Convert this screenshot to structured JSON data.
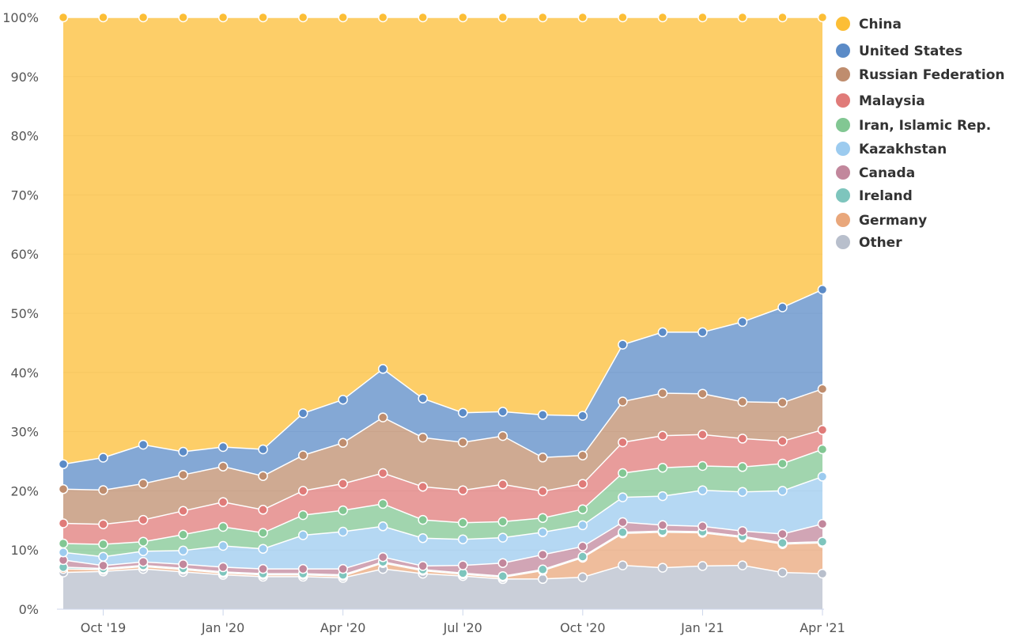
{
  "chart_data": {
    "type": "area",
    "stacking": "percent",
    "title": "",
    "xlabel": "",
    "ylabel": "",
    "ylim": [
      0,
      100
    ],
    "y_ticks": [
      "0%",
      "10%",
      "20%",
      "30%",
      "40%",
      "50%",
      "60%",
      "70%",
      "80%",
      "90%",
      "100%"
    ],
    "x_ticks": [
      {
        "index": 1,
        "label": "Oct '19"
      },
      {
        "index": 4,
        "label": "Jan '20"
      },
      {
        "index": 7,
        "label": "Apr '20"
      },
      {
        "index": 10,
        "label": "Jul '20"
      },
      {
        "index": 13,
        "label": "Oct '20"
      },
      {
        "index": 16,
        "label": "Jan '21"
      },
      {
        "index": 19,
        "label": "Apr '21"
      }
    ],
    "x": [
      "Sep 2019",
      "Oct 2019",
      "Nov 2019",
      "Dec 2019",
      "Jan 2020",
      "Feb 2020",
      "Mar 2020",
      "Apr 2020",
      "May 2020",
      "Jun 2020",
      "Jul 2020",
      "Aug 2020",
      "Sep 2020",
      "Oct 2020",
      "Nov 2020",
      "Dec 2020",
      "Jan 2021",
      "Feb 2021",
      "Mar 2021",
      "Apr 2021"
    ],
    "legend_position": "right",
    "grid": "horizontal",
    "series": [
      {
        "name": "Other",
        "color": "#b8bfcc",
        "values": [
          6.2,
          6.4,
          6.8,
          6.3,
          5.8,
          5.5,
          5.5,
          5.3,
          6.8,
          6.0,
          5.6,
          5.1,
          5.1,
          5.4,
          7.4,
          7.0,
          7.3,
          7.4,
          6.2,
          6.0
        ]
      },
      {
        "name": "Germany",
        "color": "#e9a77b",
        "values": [
          0.6,
          0.3,
          0.4,
          0.4,
          0.3,
          0.3,
          0.3,
          0.3,
          1.0,
          0.5,
          0.3,
          0.3,
          1.4,
          3.3,
          5.4,
          6.0,
          5.6,
          4.7,
          4.8,
          5.2
        ]
      },
      {
        "name": "Ireland",
        "color": "#7ec5bd",
        "values": [
          0.3,
          0.2,
          0.2,
          0.2,
          0.2,
          0.2,
          0.2,
          0.2,
          0.2,
          0.2,
          0.2,
          0.2,
          0.2,
          0.2,
          0.2,
          0.2,
          0.2,
          0.2,
          0.2,
          0.2
        ]
      },
      {
        "name": "Canada",
        "color": "#c2879c",
        "values": [
          1.2,
          0.5,
          0.6,
          0.7,
          0.8,
          0.8,
          0.8,
          1.0,
          0.8,
          0.6,
          1.3,
          2.2,
          2.5,
          1.7,
          1.7,
          1.0,
          0.9,
          0.9,
          1.5,
          3.0
        ]
      },
      {
        "name": "Kazakhstan",
        "color": "#9ccbef",
        "values": [
          1.3,
          1.5,
          1.8,
          2.3,
          3.6,
          3.4,
          5.7,
          6.3,
          5.2,
          4.7,
          4.4,
          4.3,
          3.8,
          3.6,
          4.2,
          4.9,
          6.1,
          6.6,
          7.3,
          8.0
        ]
      },
      {
        "name": "Iran, Islamic Rep.",
        "color": "#82c793",
        "values": [
          1.5,
          2.1,
          1.6,
          2.7,
          3.2,
          2.7,
          3.4,
          3.6,
          3.8,
          3.1,
          2.8,
          2.7,
          2.4,
          2.7,
          4.1,
          4.8,
          4.1,
          4.2,
          4.6,
          4.6
        ]
      },
      {
        "name": "Malaysia",
        "color": "#e07b79",
        "values": [
          3.4,
          3.4,
          3.7,
          4.0,
          4.2,
          3.9,
          4.1,
          4.5,
          5.2,
          5.6,
          5.5,
          6.3,
          4.5,
          4.3,
          5.2,
          5.4,
          5.3,
          4.8,
          3.8,
          3.3
        ]
      },
      {
        "name": "Russian Federation",
        "color": "#bf8d6e",
        "values": [
          5.8,
          5.8,
          6.1,
          6.1,
          6.0,
          5.7,
          6.0,
          6.9,
          9.4,
          8.3,
          8.1,
          8.2,
          5.7,
          4.8,
          6.9,
          7.2,
          6.9,
          6.2,
          6.5,
          6.9
        ]
      },
      {
        "name": "United States",
        "color": "#5b8bc7",
        "values": [
          4.2,
          5.5,
          6.6,
          3.9,
          3.3,
          4.5,
          7.1,
          7.3,
          8.2,
          6.6,
          5.0,
          4.1,
          7.2,
          6.7,
          9.6,
          10.3,
          10.4,
          13.5,
          16.1,
          16.8
        ]
      },
      {
        "name": "China",
        "color": "#fcbe36",
        "values": [
          75.5,
          74.7,
          72.2,
          73.4,
          72.6,
          73.0,
          66.9,
          64.6,
          59.4,
          64.4,
          66.8,
          66.7,
          67.1,
          67.4,
          55.3,
          53.2,
          53.2,
          51.4,
          49.0,
          46.0
        ]
      }
    ]
  }
}
